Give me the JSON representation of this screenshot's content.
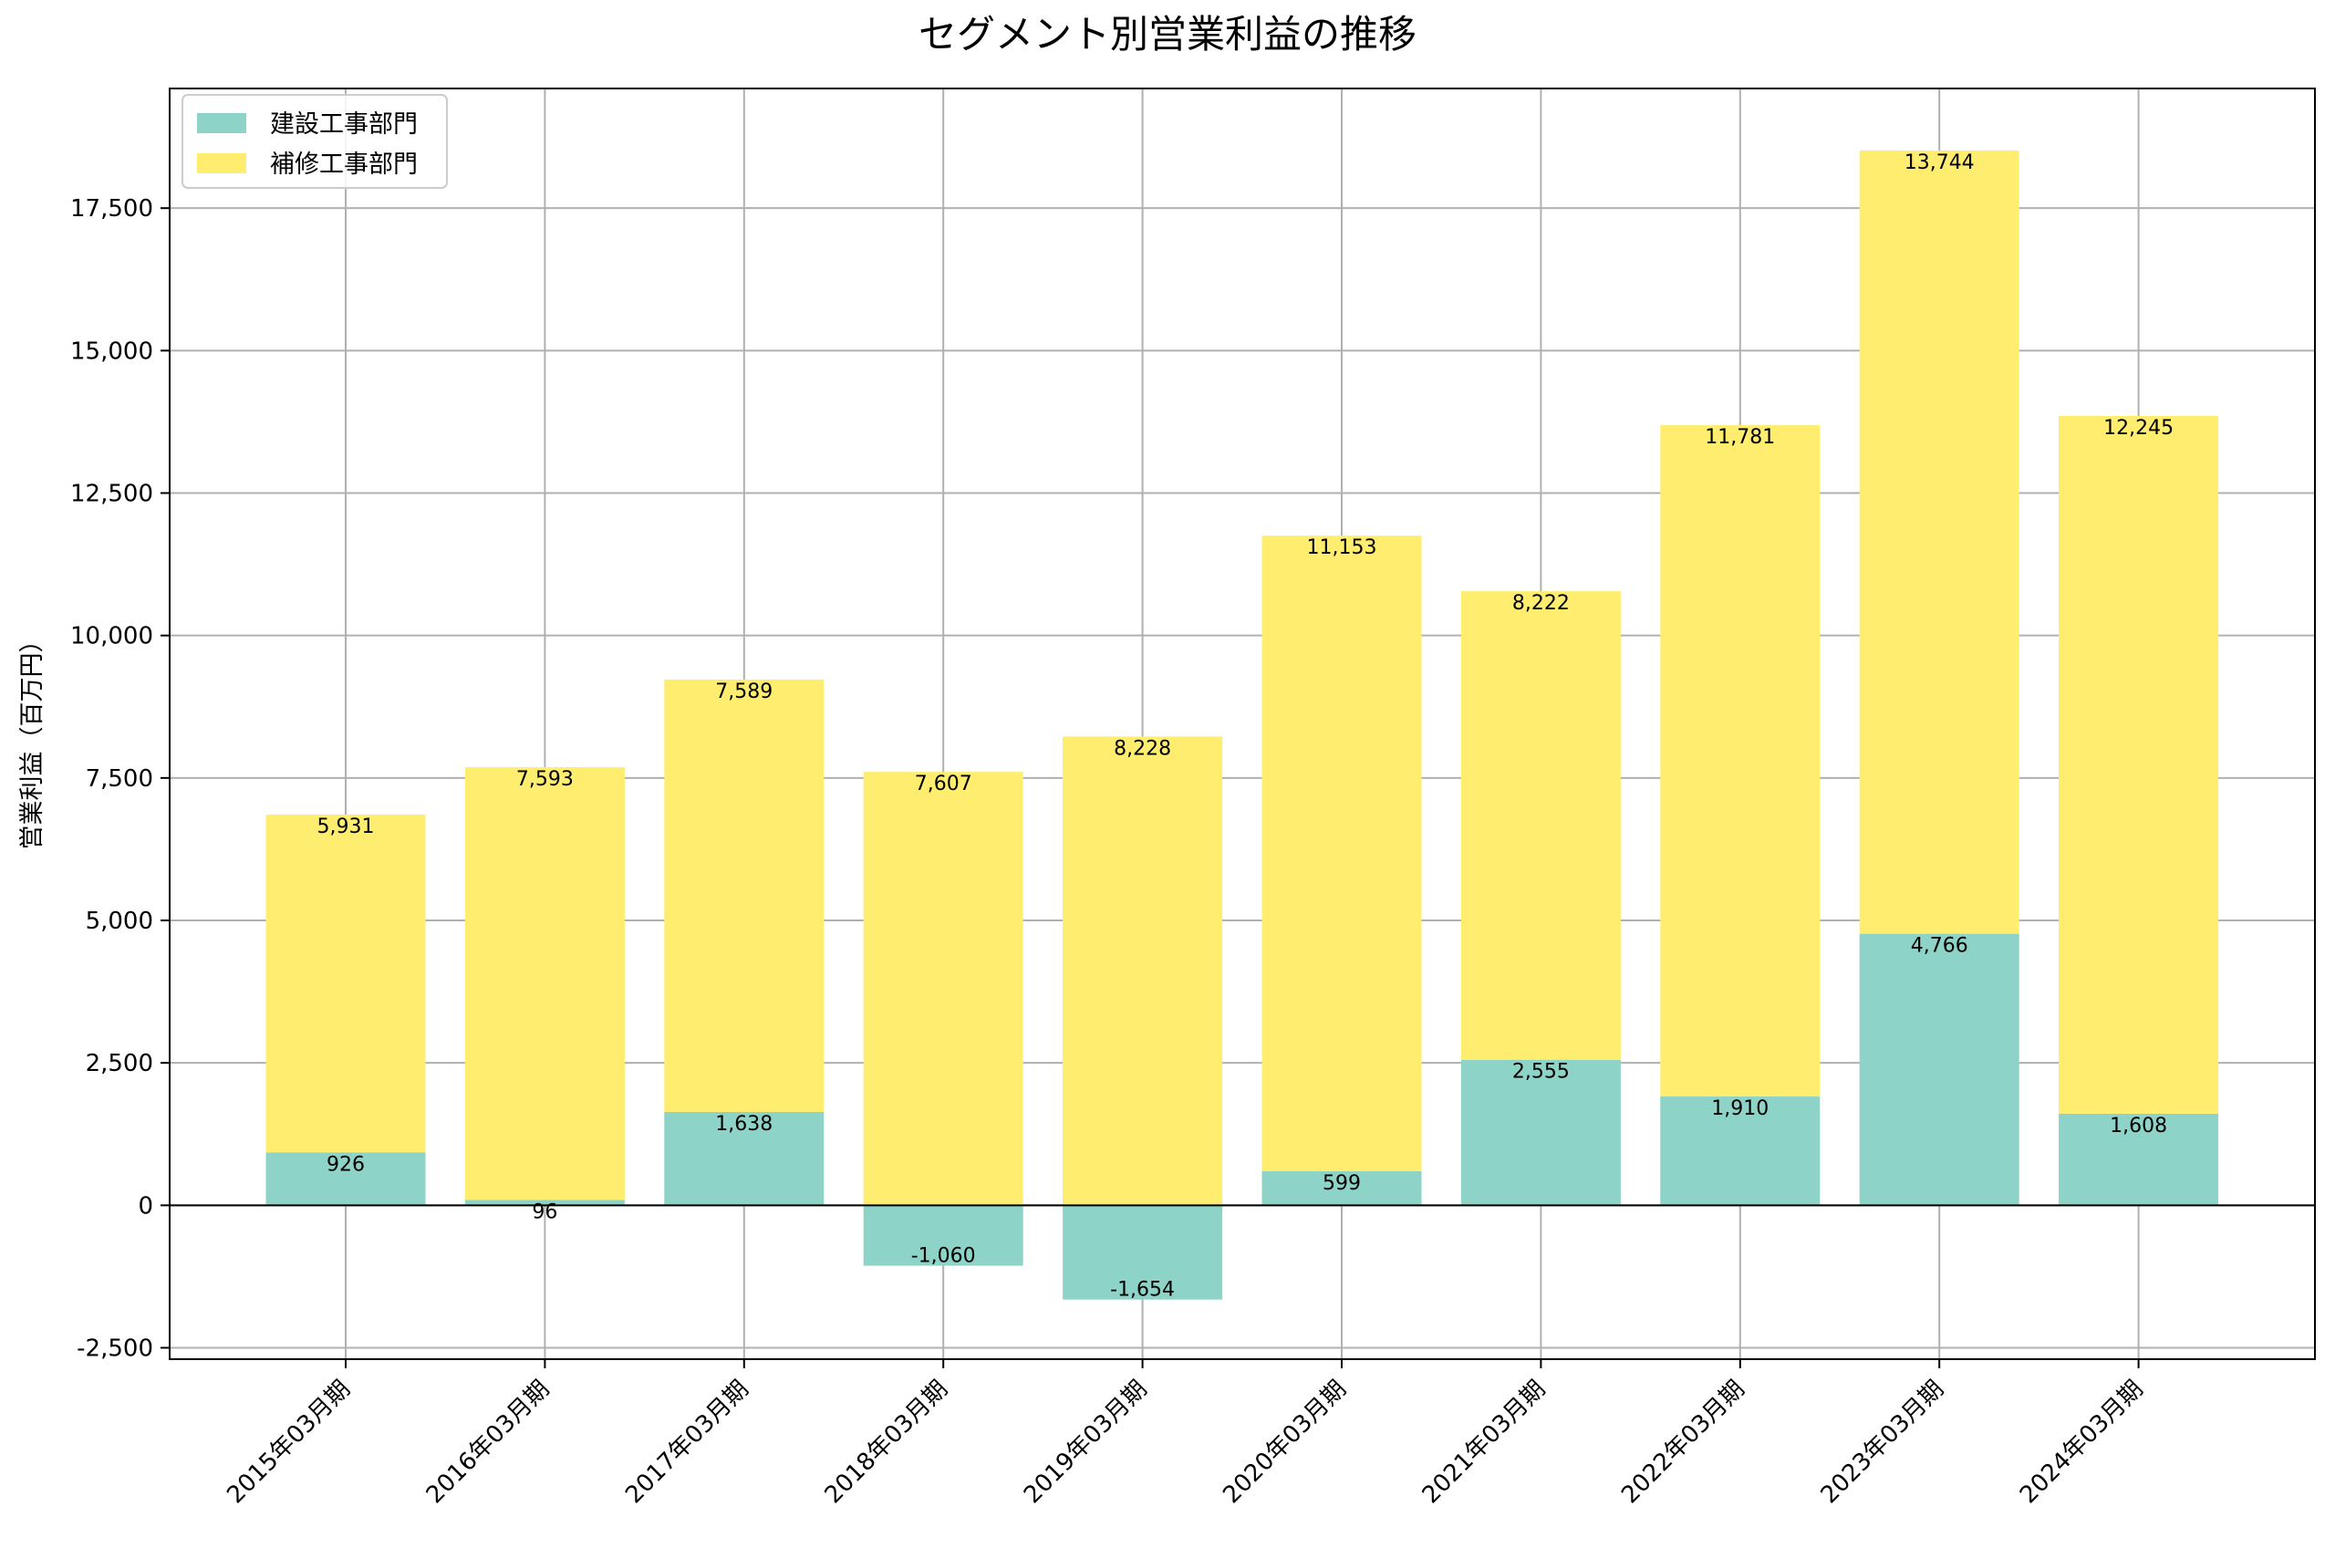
{
  "chart_data": {
    "type": "bar",
    "stacked": true,
    "title": "セグメント別営業利益の推移",
    "xlabel": "",
    "ylabel": "営業利益（百万円）",
    "categories": [
      "2015年03月期",
      "2016年03月期",
      "2017年03月期",
      "2018年03月期",
      "2019年03月期",
      "2020年03月期",
      "2021年03月期",
      "2022年03月期",
      "2023年03月期",
      "2024年03月期"
    ],
    "series": [
      {
        "name": "建設工事部門",
        "color": "#8dd3c7",
        "values": [
          926,
          96,
          1638,
          -1060,
          -1654,
          599,
          2555,
          1910,
          4766,
          1608
        ],
        "labels": [
          "926",
          "96",
          "1,638",
          "-1,060",
          "-1,654",
          "599",
          "2,555",
          "1,910",
          "4,766",
          "1,608"
        ]
      },
      {
        "name": "補修工事部門",
        "color": "#ffed6f",
        "values": [
          5931,
          7593,
          7589,
          7607,
          8228,
          11153,
          8222,
          11781,
          13744,
          12245
        ],
        "labels": [
          "5,931",
          "7,593",
          "7,589",
          "7,607",
          "8,228",
          "11,153",
          "8,222",
          "11,781",
          "13,744",
          "12,245"
        ]
      }
    ],
    "ylim": [
      -2700,
      19600
    ],
    "yticks": [
      -2500,
      0,
      2500,
      5000,
      7500,
      10000,
      12500,
      15000,
      17500
    ],
    "ytick_labels": [
      "-2,500",
      "0",
      "2,500",
      "5,000",
      "7,500",
      "10,000",
      "12,500",
      "15,000",
      "17,500"
    ],
    "grid": true,
    "legend_position": "top-left",
    "zero_line": true
  }
}
